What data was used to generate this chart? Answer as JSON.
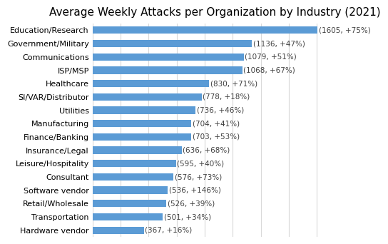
{
  "title": "Average Weekly Attacks per Organization by Industry (2021)",
  "categories": [
    "Education/Research",
    "Government/Military",
    "Communications",
    "ISP/MSP",
    "Healthcare",
    "SI/VAR/Distributor",
    "Utilities",
    "Manufacturing",
    "Finance/Banking",
    "Insurance/Legal",
    "Leisure/Hospitality",
    "Consultant",
    "Software vendor",
    "Retail/Wholesale",
    "Transportation",
    "Hardware vendor"
  ],
  "values": [
    1605,
    1136,
    1079,
    1068,
    830,
    778,
    736,
    704,
    703,
    636,
    595,
    576,
    536,
    526,
    501,
    367
  ],
  "labels": [
    "(1605, +75%)",
    "(1136, +47%)",
    "(1079, +51%)",
    "(1068, +67%)",
    "(830, +71%)",
    "(778, +18%)",
    "(736, +46%)",
    "(704, +41%)",
    "(703, +53%)",
    "(636, +68%)",
    "(595, +40%)",
    "(576, +73%)",
    "(536, +146%)",
    "(526, +39%)",
    "(501, +34%)",
    "(367, +16%)"
  ],
  "bar_color": "#5b9bd5",
  "label_color": "#404040",
  "background_color": "#ffffff",
  "title_fontsize": 11,
  "label_fontsize": 7.5,
  "tick_fontsize": 8,
  "xlim": [
    0,
    1750
  ],
  "grid_color": "#d9d9d9",
  "grid_interval": 200
}
